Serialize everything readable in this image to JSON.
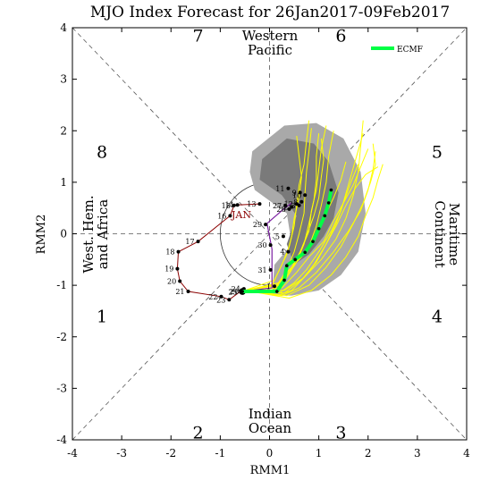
{
  "chart_data": {
    "type": "line",
    "title": "MJO Index Forecast for 26Jan2017-09Feb2017",
    "xlabel": "RMM1",
    "ylabel": "RMM2",
    "xlim": [
      -4,
      4
    ],
    "ylim": [
      -4,
      4
    ],
    "xticks": [
      "-4",
      "-3",
      "-2",
      "-1",
      "0",
      "1",
      "2",
      "3",
      "4"
    ],
    "yticks": [
      "-4",
      "-3",
      "-2",
      "-1",
      "0",
      "1",
      "2",
      "3",
      "4"
    ],
    "phases": [
      {
        "label": "1",
        "x": -3.4,
        "y": -1.6
      },
      {
        "label": "2",
        "x": -1.45,
        "y": -3.85
      },
      {
        "label": "3",
        "x": 1.45,
        "y": -3.85
      },
      {
        "label": "4",
        "x": 3.4,
        "y": -1.6
      },
      {
        "label": "5",
        "x": 3.4,
        "y": 1.6
      },
      {
        "label": "6",
        "x": 1.45,
        "y": 3.85
      },
      {
        "label": "7",
        "x": -1.45,
        "y": 3.85
      },
      {
        "label": "8",
        "x": -3.4,
        "y": 1.6
      }
    ],
    "regions": {
      "top": [
        "Western",
        "Pacific"
      ],
      "bottom": [
        "Indian",
        "Ocean"
      ],
      "left": [
        "West. Hem.",
        "and Africa"
      ],
      "right": [
        "Maritime",
        "Continent"
      ]
    },
    "month_label": "JAN",
    "legend": [
      {
        "name": "ECMF",
        "color": "#00ff44"
      }
    ],
    "colors": {
      "observed": "#8b0000",
      "ensemble": "#ffff00",
      "ensemble_mean": "#00ff44",
      "outer_spread": "#a9a9a9",
      "inner_spread": "#7a7a7a",
      "analysis_link": "#7b1fa2",
      "axes": "#000000"
    },
    "observed": [
      {
        "day": "13",
        "x": -0.2,
        "y": 0.58
      },
      {
        "day": "14",
        "x": -0.65,
        "y": 0.56
      },
      {
        "day": "15",
        "x": -0.72,
        "y": 0.55
      },
      {
        "day": "16",
        "x": -0.8,
        "y": 0.35
      },
      {
        "day": "17",
        "x": -1.45,
        "y": -0.15
      },
      {
        "day": "18",
        "x": -1.85,
        "y": -0.35
      },
      {
        "day": "19",
        "x": -1.87,
        "y": -0.68
      },
      {
        "day": "20",
        "x": -1.82,
        "y": -0.92
      },
      {
        "day": "21",
        "x": -1.65,
        "y": -1.12
      },
      {
        "day": "22",
        "x": -0.98,
        "y": -1.22
      },
      {
        "day": "23",
        "x": -0.82,
        "y": -1.28
      },
      {
        "day": "24",
        "x": -0.52,
        "y": -1.07
      },
      {
        "day": "25",
        "x": -0.58,
        "y": -1.13
      },
      {
        "day": "26",
        "x": -0.55,
        "y": -1.12
      }
    ],
    "analysis": [
      {
        "day": "27",
        "x": 0.32,
        "y": 0.55
      },
      {
        "day": "28",
        "x": 0.4,
        "y": 0.48
      },
      {
        "day": "29",
        "x": -0.08,
        "y": 0.18
      },
      {
        "day": "30",
        "x": 0.02,
        "y": -0.22
      },
      {
        "day": "31",
        "x": 0.02,
        "y": -0.7
      },
      {
        "day": "1",
        "x": 0.1,
        "y": -1.02
      },
      {
        "day": "2",
        "x": 0.45,
        "y": 0.52
      },
      {
        "day": "3",
        "x": 0.6,
        "y": 0.55
      },
      {
        "day": "4",
        "x": 0.38,
        "y": -0.35
      },
      {
        "day": "5",
        "x": 0.28,
        "y": -0.05
      },
      {
        "day": "8",
        "x": 0.65,
        "y": 0.62
      },
      {
        "day": "9",
        "x": 0.62,
        "y": 0.8
      },
      {
        "day": "10",
        "x": 0.72,
        "y": 0.75
      },
      {
        "day": "11",
        "x": 0.38,
        "y": 0.88
      },
      {
        "day": "12",
        "x": 0.55,
        "y": 0.58
      }
    ],
    "ensemble_mean": [
      {
        "x": -0.55,
        "y": -1.12
      },
      {
        "x": 0.15,
        "y": -1.12
      },
      {
        "x": 0.3,
        "y": -0.9
      },
      {
        "x": 0.35,
        "y": -0.62
      },
      {
        "x": 0.52,
        "y": -0.5
      },
      {
        "x": 0.72,
        "y": -0.36
      },
      {
        "x": 0.88,
        "y": -0.15
      },
      {
        "x": 1.0,
        "y": 0.1
      },
      {
        "x": 1.12,
        "y": 0.35
      },
      {
        "x": 1.2,
        "y": 0.6
      },
      {
        "x": 1.25,
        "y": 0.85
      }
    ],
    "ensemble_members": [
      [
        [
          -0.5,
          -1.1
        ],
        [
          0.2,
          -1.15
        ],
        [
          0.5,
          -0.95
        ],
        [
          0.75,
          -0.7
        ],
        [
          1.0,
          -0.35
        ],
        [
          1.25,
          0.05
        ],
        [
          1.45,
          0.45
        ],
        [
          1.6,
          0.95
        ],
        [
          1.75,
          1.45
        ],
        [
          1.9,
          1.95
        ]
      ],
      [
        [
          -0.5,
          -1.1
        ],
        [
          0.1,
          -1.05
        ],
        [
          0.3,
          -0.8
        ],
        [
          0.55,
          -0.55
        ],
        [
          0.8,
          -0.25
        ],
        [
          0.95,
          0.15
        ],
        [
          1.05,
          0.55
        ],
        [
          1.15,
          1.0
        ],
        [
          1.2,
          1.5
        ],
        [
          1.3,
          2.0
        ]
      ],
      [
        [
          -0.5,
          -1.1
        ],
        [
          0.25,
          -1.2
        ],
        [
          0.6,
          -1.05
        ],
        [
          0.95,
          -0.75
        ],
        [
          1.3,
          -0.35
        ],
        [
          1.6,
          0.05
        ],
        [
          1.85,
          0.45
        ],
        [
          2.0,
          0.85
        ],
        [
          2.1,
          1.25
        ],
        [
          2.15,
          1.6
        ]
      ],
      [
        [
          -0.5,
          -1.1
        ],
        [
          0.15,
          -1.0
        ],
        [
          0.35,
          -0.7
        ],
        [
          0.5,
          -0.35
        ],
        [
          0.6,
          0.0
        ],
        [
          0.7,
          0.4
        ],
        [
          0.72,
          0.8
        ],
        [
          0.75,
          1.2
        ],
        [
          0.8,
          1.6
        ],
        [
          0.85,
          2.05
        ]
      ],
      [
        [
          -0.5,
          -1.1
        ],
        [
          0.3,
          -1.1
        ],
        [
          0.7,
          -0.85
        ],
        [
          1.05,
          -0.5
        ],
        [
          1.35,
          -0.1
        ],
        [
          1.55,
          0.3
        ],
        [
          1.7,
          0.75
        ],
        [
          1.8,
          1.2
        ],
        [
          1.85,
          1.7
        ],
        [
          1.9,
          2.2
        ]
      ],
      [
        [
          -0.5,
          -1.1
        ],
        [
          0.05,
          -1.15
        ],
        [
          0.2,
          -0.95
        ],
        [
          0.4,
          -0.7
        ],
        [
          0.65,
          -0.45
        ],
        [
          0.9,
          -0.1
        ],
        [
          1.1,
          0.3
        ],
        [
          1.3,
          0.7
        ],
        [
          1.45,
          1.05
        ],
        [
          1.55,
          1.4
        ]
      ],
      [
        [
          -0.5,
          -1.1
        ],
        [
          0.2,
          -0.95
        ],
        [
          0.45,
          -0.65
        ],
        [
          0.65,
          -0.3
        ],
        [
          0.8,
          0.05
        ],
        [
          0.85,
          0.45
        ],
        [
          0.95,
          0.85
        ],
        [
          1.0,
          1.25
        ],
        [
          1.05,
          1.65
        ],
        [
          1.15,
          2.1
        ]
      ],
      [
        [
          -0.5,
          -1.1
        ],
        [
          0.35,
          -1.2
        ],
        [
          0.8,
          -1.0
        ],
        [
          1.15,
          -0.65
        ],
        [
          1.45,
          -0.25
        ],
        [
          1.7,
          0.2
        ],
        [
          1.9,
          0.6
        ],
        [
          2.05,
          1.0
        ],
        [
          2.15,
          1.35
        ],
        [
          2.1,
          1.75
        ]
      ],
      [
        [
          -0.5,
          -1.1
        ],
        [
          0.1,
          -0.9
        ],
        [
          0.25,
          -0.6
        ],
        [
          0.4,
          -0.25
        ],
        [
          0.5,
          0.15
        ],
        [
          0.55,
          0.55
        ],
        [
          0.6,
          0.95
        ],
        [
          0.7,
          1.35
        ],
        [
          0.75,
          1.8
        ],
        [
          0.8,
          2.2
        ]
      ],
      [
        [
          -0.5,
          -1.1
        ],
        [
          0.25,
          -1.05
        ],
        [
          0.55,
          -0.75
        ],
        [
          0.8,
          -0.45
        ],
        [
          1.1,
          -0.15
        ],
        [
          1.3,
          0.25
        ],
        [
          1.5,
          0.6
        ],
        [
          1.7,
          0.95
        ],
        [
          1.85,
          1.3
        ],
        [
          2.0,
          1.65
        ]
      ],
      [
        [
          -0.5,
          -1.1
        ],
        [
          0.15,
          -1.2
        ],
        [
          0.45,
          -1.1
        ],
        [
          0.7,
          -0.85
        ],
        [
          0.95,
          -0.55
        ],
        [
          1.15,
          -0.2
        ],
        [
          1.35,
          0.2
        ],
        [
          1.5,
          0.6
        ],
        [
          1.65,
          1.0
        ],
        [
          1.8,
          1.35
        ]
      ],
      [
        [
          -0.5,
          -1.1
        ],
        [
          0.2,
          -1.0
        ],
        [
          0.4,
          -0.75
        ],
        [
          0.6,
          -0.4
        ],
        [
          0.75,
          -0.05
        ],
        [
          0.9,
          0.35
        ],
        [
          1.0,
          0.7
        ],
        [
          1.05,
          1.1
        ],
        [
          1.1,
          1.45
        ],
        [
          1.05,
          1.85
        ]
      ],
      [
        [
          -0.5,
          -1.1
        ],
        [
          0.3,
          -1.15
        ],
        [
          0.65,
          -0.9
        ],
        [
          0.9,
          -0.6
        ],
        [
          1.15,
          -0.2
        ],
        [
          1.35,
          0.15
        ],
        [
          1.55,
          0.55
        ],
        [
          1.75,
          0.9
        ],
        [
          1.95,
          1.15
        ],
        [
          2.2,
          1.3
        ]
      ],
      [
        [
          -0.5,
          -1.1
        ],
        [
          0.05,
          -1.0
        ],
        [
          0.2,
          -0.7
        ],
        [
          0.35,
          -0.4
        ],
        [
          0.45,
          -0.05
        ],
        [
          0.5,
          0.3
        ],
        [
          0.6,
          0.7
        ],
        [
          0.65,
          1.1
        ],
        [
          0.6,
          1.5
        ],
        [
          0.55,
          1.9
        ]
      ],
      [
        [
          -0.5,
          -1.1
        ],
        [
          0.4,
          -1.25
        ],
        [
          0.85,
          -1.1
        ],
        [
          1.25,
          -0.8
        ],
        [
          1.55,
          -0.45
        ],
        [
          1.8,
          -0.05
        ],
        [
          1.95,
          0.35
        ],
        [
          2.1,
          0.7
        ],
        [
          2.2,
          1.05
        ],
        [
          2.3,
          1.35
        ]
      ],
      [
        [
          -0.5,
          -1.1
        ],
        [
          0.15,
          -1.1
        ],
        [
          0.35,
          -0.85
        ],
        [
          0.55,
          -0.55
        ],
        [
          0.7,
          -0.2
        ],
        [
          0.8,
          0.2
        ],
        [
          0.9,
          0.65
        ],
        [
          0.95,
          1.05
        ],
        [
          0.95,
          1.5
        ],
        [
          1.0,
          1.95
        ]
      ]
    ]
  }
}
